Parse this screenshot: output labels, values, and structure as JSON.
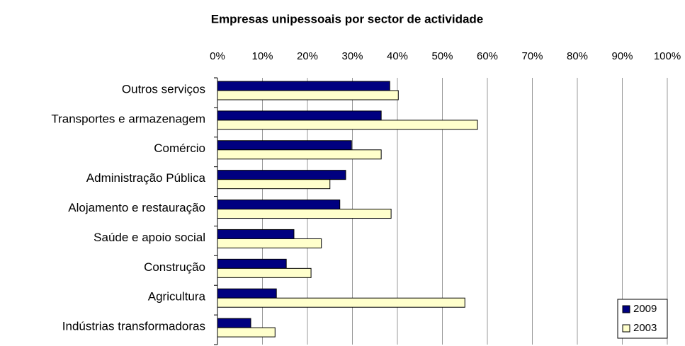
{
  "chart_data": {
    "type": "barh",
    "title": "Empresas unipessoais por sector de actividade",
    "categories": [
      "Outros serviços",
      "Transportes e armazenagem",
      "Comércio",
      "Administração Pública",
      "Alojamento e restauração",
      "Saúde e apoio  social",
      "Construção",
      "Agricultura",
      "Indústrias transformadoras"
    ],
    "series": [
      {
        "name": "2009",
        "color": "#000080",
        "values": [
          38.3,
          36.4,
          29.8,
          28.5,
          27.2,
          17.0,
          15.3,
          13.1,
          7.4
        ]
      },
      {
        "name": "2003",
        "color": "#ffffcc",
        "values": [
          40.2,
          57.8,
          36.4,
          25.0,
          38.6,
          23.1,
          20.8,
          55.0,
          12.8
        ]
      }
    ],
    "xlim": [
      0,
      100
    ],
    "xticks": [
      {
        "value": 0,
        "label": "0%"
      },
      {
        "value": 10,
        "label": "10%"
      },
      {
        "value": 20,
        "label": "20%"
      },
      {
        "value": 30,
        "label": "30%"
      },
      {
        "value": 40,
        "label": "40%"
      },
      {
        "value": 50,
        "label": "50%"
      },
      {
        "value": 60,
        "label": "60%"
      },
      {
        "value": 70,
        "label": "70%"
      },
      {
        "value": 80,
        "label": "80%"
      },
      {
        "value": 90,
        "label": "90%"
      },
      {
        "value": 100,
        "label": "100%"
      }
    ],
    "grid": true,
    "legend": "lower right"
  }
}
